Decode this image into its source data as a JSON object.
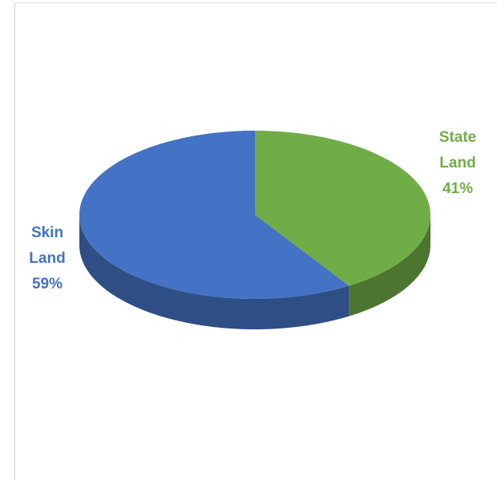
{
  "chart_data": {
    "type": "pie3d",
    "categories": [
      "State Land",
      "Skin Land"
    ],
    "values": [
      41,
      59
    ],
    "value_labels": [
      "41%",
      "59%"
    ],
    "colors": [
      "#70ad47",
      "#4472c4"
    ]
  }
}
